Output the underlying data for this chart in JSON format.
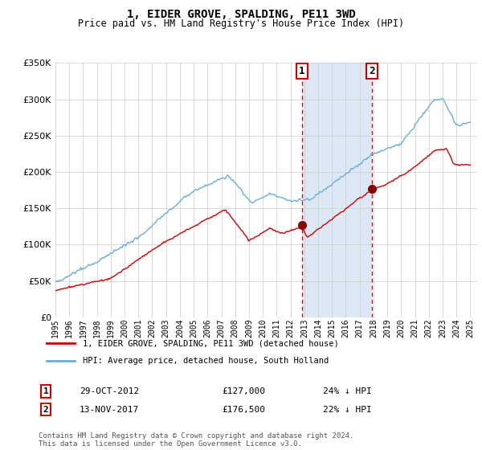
{
  "title": "1, EIDER GROVE, SPALDING, PE11 3WD",
  "subtitle": "Price paid vs. HM Land Registry's House Price Index (HPI)",
  "sale1_date": 2012.83,
  "sale1_label": "29-OCT-2012",
  "sale1_price": 127000,
  "sale1_hpi_pct": "24% ↓ HPI",
  "sale2_date": 2017.87,
  "sale2_label": "13-NOV-2017",
  "sale2_price": 176500,
  "sale2_hpi_pct": "22% ↓ HPI",
  "ylim": [
    0,
    350000
  ],
  "xlim_start": 1995.0,
  "xlim_end": 2025.5,
  "bg_color": "#ffffff",
  "grid_color": "#cccccc",
  "shade_color": "#dce9f5",
  "red_line_color": "#cc0000",
  "blue_line_color": "#6aaed6",
  "footer": "Contains HM Land Registry data © Crown copyright and database right 2024.\nThis data is licensed under the Open Government Licence v3.0.",
  "legend_entry1": "1, EIDER GROVE, SPALDING, PE11 3WD (detached house)",
  "legend_entry2": "HPI: Average price, detached house, South Holland"
}
